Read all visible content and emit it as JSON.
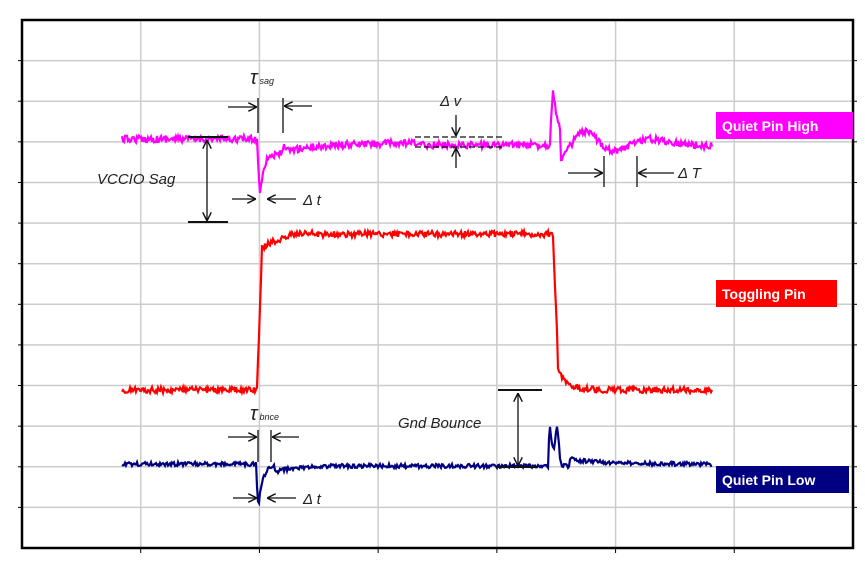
{
  "colors": {
    "quiet_high": "#ff00ff",
    "toggling": "#ff0000",
    "quiet_low": "#000080",
    "grid": "#cccccc",
    "frame": "#000000"
  },
  "legend": {
    "quiet_high": "Quiet Pin High",
    "toggling": "Toggling Pin",
    "quiet_low": "Quiet Pin Low"
  },
  "annotations": {
    "tau_sag": "τ",
    "tau_sag_sub": "sag",
    "delta_v": "Δ v",
    "vccio_sag": "VCCIO Sag",
    "delta_t_top": "Δ t",
    "delta_T": "Δ T",
    "tau_bnce": "τ",
    "tau_bnce_sub": "bnce",
    "gnd_bounce": "Gnd Bounce",
    "delta_t_bottom": "Δ t"
  },
  "grid": {
    "vertical_divisions": 7,
    "horizontal_divisions": 13,
    "visible": true
  }
}
